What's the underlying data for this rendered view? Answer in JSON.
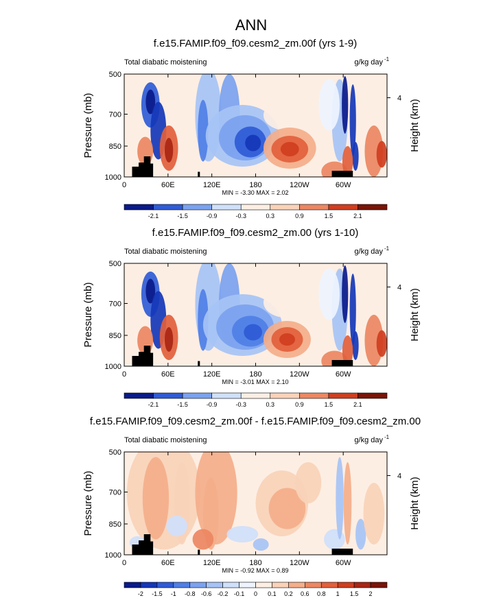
{
  "figure": {
    "title": "ANN"
  },
  "colors": {
    "scale": [
      "#0a1a8a",
      "#1537b8",
      "#2f5bd6",
      "#4f7fe6",
      "#7ba2ef",
      "#a6c3f5",
      "#cfe0fb",
      "#eef4fe",
      "#fdeee3",
      "#f9d2b8",
      "#f4ae8a",
      "#ec8762",
      "#e2603c",
      "#cf3e1f",
      "#a82614",
      "#7a1408"
    ],
    "land": "#000000"
  },
  "chart_data": [
    {
      "type": "heatmap",
      "title": "f.e15.FAMIP.f09_f09.cesm2_zm.00f (yrs 1-9)",
      "left_label": "Total diabatic moistening",
      "right_label": "g/kg day",
      "units_exp": "-1",
      "ylabel": "Pressure (mb)",
      "ylabel_right": "Height (km)",
      "yticks": [
        "500",
        "700",
        "850",
        "1000"
      ],
      "yticks_right": [
        "4"
      ],
      "xticks": [
        "0",
        "60E",
        "120E",
        "180",
        "120W",
        "60W"
      ],
      "stats": "MIN = -3.30  MAX =  2.02",
      "colorbar_labels": [
        "-2.1",
        "-1.5",
        "-0.9",
        "-0.3",
        "0.3",
        "0.9",
        "1.5",
        "2.1"
      ]
    },
    {
      "type": "heatmap",
      "title": "f.e15.FAMIP.f09_f09.cesm2_zm.00 (yrs 1-10)",
      "left_label": "Total diabatic moistening",
      "right_label": "g/kg day",
      "units_exp": "-1",
      "ylabel": "Pressure (mb)",
      "ylabel_right": "Height (km)",
      "yticks": [
        "500",
        "700",
        "850",
        "1000"
      ],
      "yticks_right": [
        "4"
      ],
      "xticks": [
        "0",
        "60E",
        "120E",
        "180",
        "120W",
        "60W"
      ],
      "stats": "MIN = -3.01  MAX =  2.10",
      "colorbar_labels": [
        "-2.1",
        "-1.5",
        "-0.9",
        "-0.3",
        "0.3",
        "0.9",
        "1.5",
        "2.1"
      ]
    },
    {
      "type": "heatmap",
      "title": "f.e15.FAMIP.f09_f09.cesm2_zm.00f - f.e15.FAMIP.f09_f09.cesm2_zm.00",
      "left_label": "Total diabatic moistening",
      "right_label": "g/kg day",
      "units_exp": "-1",
      "ylabel": "Pressure (mb)",
      "ylabel_right": "Height (km)",
      "yticks": [
        "500",
        "700",
        "850",
        "1000"
      ],
      "yticks_right": [
        "4"
      ],
      "xticks": [
        "0",
        "60E",
        "120E",
        "180",
        "120W",
        "60W"
      ],
      "stats": "MIN = -0.92  MAX =  0.89",
      "colorbar_labels": [
        "-2",
        "-1.5",
        "-1",
        "-0.8",
        "-0.6",
        "-0.2",
        "-0.1",
        "0",
        "0.1",
        "0.2",
        "0.6",
        "0.8",
        "1",
        "1.5",
        "2"
      ]
    }
  ]
}
